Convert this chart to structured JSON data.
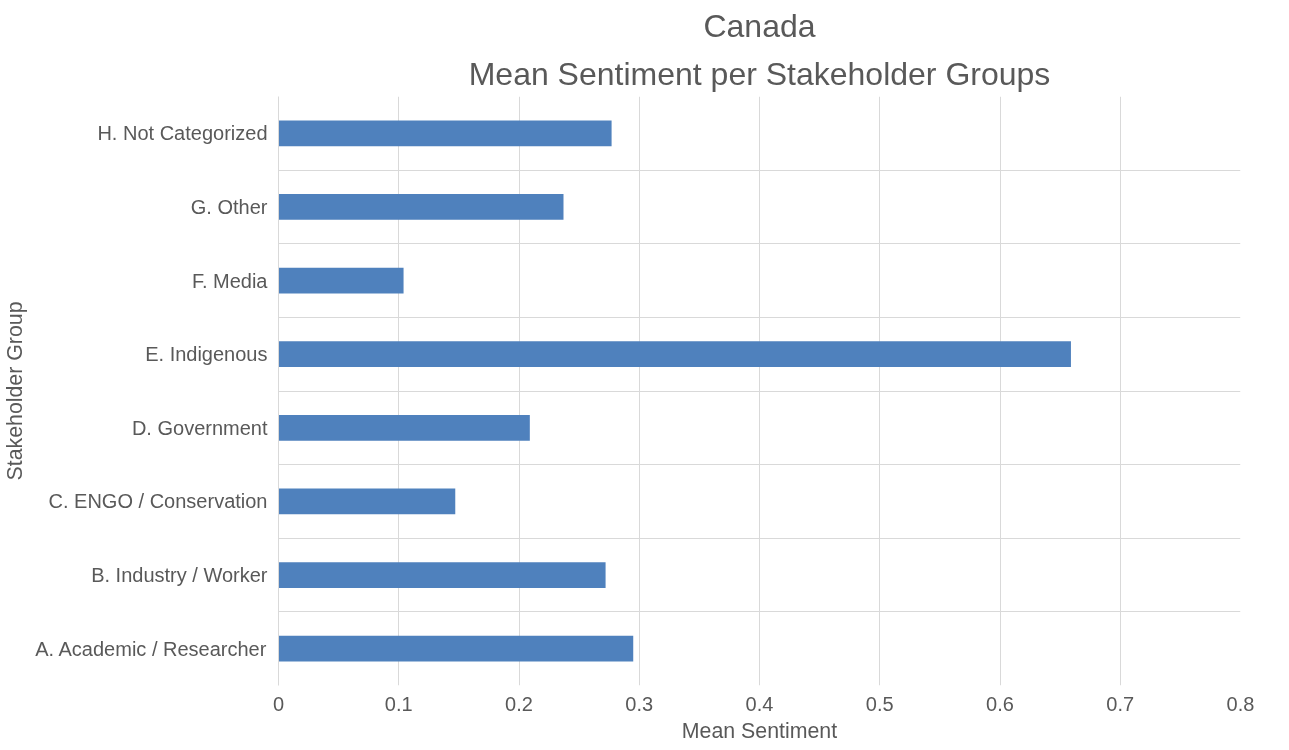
{
  "chart_data": {
    "type": "bar",
    "orientation": "horizontal",
    "title": "Canada",
    "subtitle": "Mean Sentiment per Stakeholder Groups",
    "xlabel": "Mean Sentiment",
    "ylabel": "Stakeholder Group",
    "categories": [
      "H. Not Categorized",
      "G. Other",
      "F. Media",
      "E. Indigenous",
      "D. Government",
      "C. ENGO / Conservation",
      "B. Industry / Worker",
      "A. Academic / Researcher"
    ],
    "values": [
      0.277,
      0.237,
      0.104,
      0.659,
      0.209,
      0.147,
      0.272,
      0.295
    ],
    "color": "#4f81bd",
    "xlim": [
      0,
      0.8
    ],
    "xticks": [
      0,
      0.1,
      0.2,
      0.3,
      0.4,
      0.5,
      0.6,
      0.7,
      0.8
    ],
    "grid": true
  }
}
